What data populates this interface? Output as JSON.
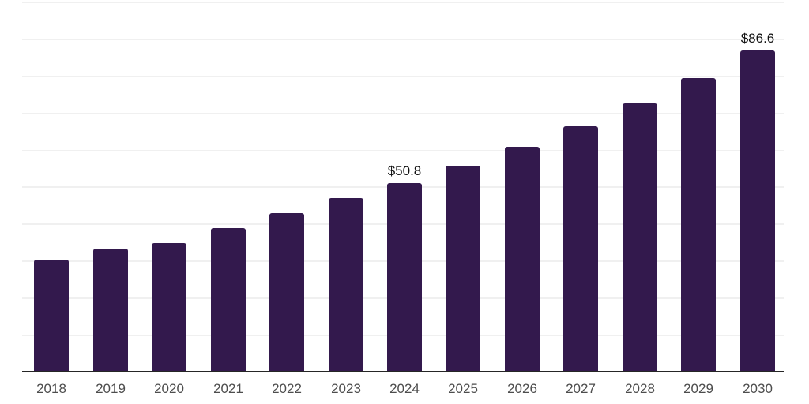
{
  "chart_data": {
    "type": "bar",
    "title": "",
    "xlabel": "",
    "ylabel": "",
    "categories": [
      "2018",
      "2019",
      "2020",
      "2021",
      "2022",
      "2023",
      "2024",
      "2025",
      "2026",
      "2027",
      "2028",
      "2029",
      "2030"
    ],
    "values": [
      30.0,
      33.0,
      34.6,
      38.5,
      42.7,
      46.8,
      50.8,
      55.5,
      60.6,
      66.1,
      72.3,
      79.1,
      86.6
    ],
    "value_labels": {
      "2024": "$50.8",
      "2030": "$86.6"
    },
    "ylim": [
      0,
      100
    ],
    "gridline_step": 10,
    "grid": true,
    "legend": "none",
    "colors": {
      "bar": "#33194d",
      "axis": "#262626",
      "gridline": "#f0f0f0",
      "tick_label": "#4d4d4d",
      "value_label": "#111111",
      "background": "#ffffff"
    }
  }
}
